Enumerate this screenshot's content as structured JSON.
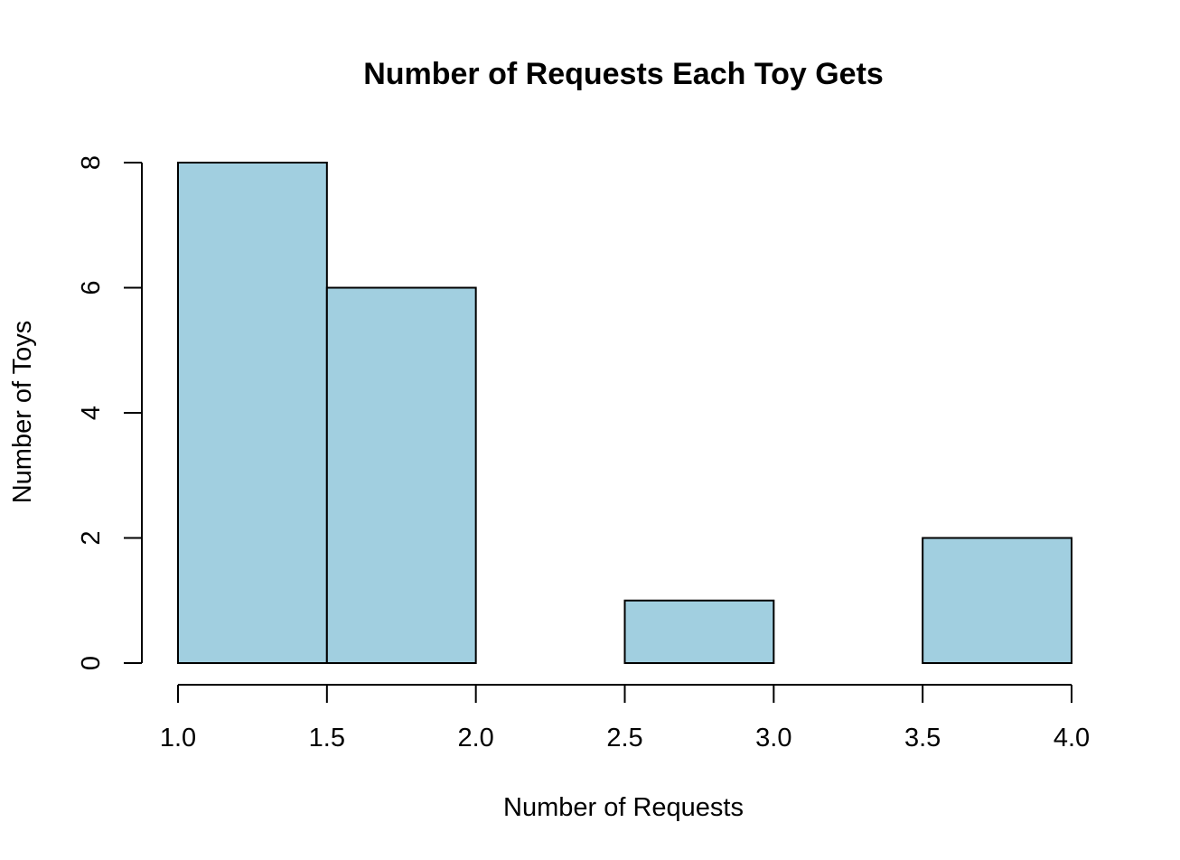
{
  "chart_data": {
    "type": "bar",
    "title": "Number of Requests Each Toy Gets",
    "xlabel": "Number of Requests",
    "ylabel": "Number of Toys",
    "bins": [
      {
        "start": 1.0,
        "end": 1.5,
        "count": 8
      },
      {
        "start": 1.5,
        "end": 2.0,
        "count": 6
      },
      {
        "start": 2.0,
        "end": 2.5,
        "count": 0
      },
      {
        "start": 2.5,
        "end": 3.0,
        "count": 1
      },
      {
        "start": 3.0,
        "end": 3.5,
        "count": 0
      },
      {
        "start": 3.5,
        "end": 4.0,
        "count": 2
      }
    ],
    "x_ticks": [
      "1.0",
      "1.5",
      "2.0",
      "2.5",
      "3.0",
      "3.5",
      "4.0"
    ],
    "y_ticks": [
      "0",
      "2",
      "4",
      "6",
      "8"
    ],
    "xlim": [
      1.0,
      4.0
    ],
    "ylim": [
      0,
      8
    ],
    "bar_color": "#a1cfe0",
    "grid": false
  }
}
